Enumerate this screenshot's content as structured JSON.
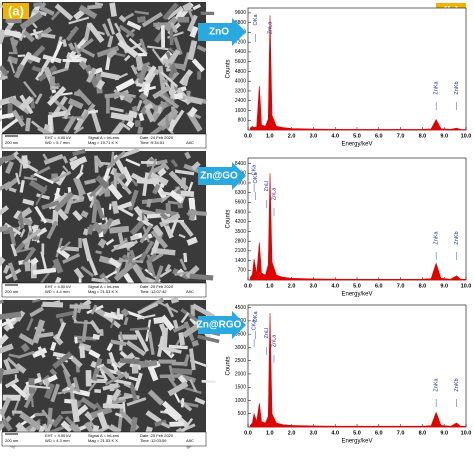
{
  "panel_labels": [
    "(a)",
    "(b)"
  ],
  "sem_images": [
    {
      "scale": "200 nm",
      "eht": "EHT = 4.00 kV",
      "wd": "WD = 5.7 mm",
      "signal": "Signal A = InLens",
      "mag": "Mag = 19.71 K X",
      "date": "Date :24 Feb 2020",
      "time": "Time :9:34:51",
      "logo": "AIIC"
    },
    {
      "scale": "200 nm",
      "eht": "EHT = 4.00 kV",
      "wd": "WD = 4.4 mm",
      "signal": "Signal A = InLens",
      "mag": "Mag = 21.53 K X",
      "date": "Date :25 Feb 2020",
      "time": "Time :12:07:42",
      "logo": "AIIC"
    },
    {
      "scale": "200 nm",
      "eht": "EHT = 4.00 kV",
      "wd": "WD = 4.3 mm",
      "signal": "Signal A = InLens",
      "mag": "Mag = 21.53 K X",
      "date": "Date :25 Feb 2020",
      "time": "Time :12:03:59",
      "logo": "AIIC"
    }
  ],
  "chart_data": [
    {
      "type": "line",
      "sample": "ZnO",
      "xlabel": "Energy/keV",
      "ylabel": "Counts",
      "color": "#e00000",
      "x": [
        0.1,
        0.2,
        0.28,
        0.4,
        0.52,
        0.62,
        0.8,
        0.93,
        1.01,
        1.1,
        1.3,
        1.6,
        2,
        3,
        4,
        5,
        6,
        7,
        8,
        8.4,
        8.63,
        8.85,
        9.3,
        9.57,
        9.75,
        10
      ],
      "values": [
        150,
        300,
        200,
        250,
        3600,
        400,
        300,
        900,
        9400,
        1200,
        300,
        200,
        120,
        80,
        60,
        50,
        50,
        50,
        60,
        90,
        850,
        100,
        60,
        150,
        50,
        40
      ],
      "annotations": [
        "OKa",
        "ZnLa",
        "ZnKa",
        "ZnKb"
      ],
      "xlim": [
        0,
        10
      ],
      "ylim": [
        0,
        10000
      ],
      "xticks": [
        {
          "value": 0,
          "label": "0.0"
        },
        {
          "value": 1,
          "label": "1.0"
        },
        {
          "value": 2,
          "label": "2.0"
        },
        {
          "value": 3,
          "label": "3.0"
        },
        {
          "value": 4,
          "label": "4.0"
        },
        {
          "value": 5,
          "label": "5.0"
        },
        {
          "value": 6,
          "label": "6.0"
        },
        {
          "value": 7,
          "label": "7.0"
        },
        {
          "value": 8,
          "label": "8.0"
        },
        {
          "value": 9,
          "label": "9.0"
        },
        {
          "value": 10,
          "label": "10.0"
        }
      ],
      "yticks": [
        800,
        1600,
        2400,
        3200,
        4000,
        4800,
        5600,
        6400,
        7200,
        8000,
        8800,
        9600
      ]
    },
    {
      "type": "line",
      "sample": "Zn@GO",
      "xlabel": "Energy/keV",
      "ylabel": "Counts",
      "color": "#e00000",
      "x": [
        0.1,
        0.2,
        0.28,
        0.4,
        0.52,
        0.62,
        0.8,
        0.93,
        1.01,
        1.1,
        1.3,
        1.6,
        2,
        3,
        4,
        5,
        6,
        7,
        8,
        8.4,
        8.63,
        8.85,
        9.3,
        9.57,
        9.75,
        10
      ],
      "values": [
        150,
        400,
        1500,
        400,
        2700,
        500,
        350,
        1100,
        7700,
        1300,
        350,
        200,
        120,
        80,
        60,
        50,
        50,
        50,
        60,
        100,
        1200,
        120,
        60,
        300,
        60,
        40
      ],
      "annotations": [
        "CKa",
        "OKa",
        "ZnLl",
        "ZnLa",
        "ZnKa",
        "ZnKb"
      ],
      "xlim": [
        0,
        10
      ],
      "ylim": [
        0,
        8800
      ],
      "xticks": [
        {
          "value": 0,
          "label": "0.0"
        },
        {
          "value": 1,
          "label": "1.0"
        },
        {
          "value": 2,
          "label": "2.0"
        },
        {
          "value": 3,
          "label": "3.0"
        },
        {
          "value": 4,
          "label": "4.0"
        },
        {
          "value": 5,
          "label": "5.0"
        },
        {
          "value": 6,
          "label": "6.0"
        },
        {
          "value": 7,
          "label": "7.0"
        },
        {
          "value": 8,
          "label": "8.0"
        },
        {
          "value": 9,
          "label": "9.0"
        },
        {
          "value": 10,
          "label": "10.0"
        }
      ],
      "yticks": [
        700,
        1400,
        2100,
        2800,
        3500,
        4200,
        4900,
        5600,
        6300,
        7000,
        7700,
        8400
      ]
    },
    {
      "type": "line",
      "sample": "Zn@RGO",
      "xlabel": "Energy/keV",
      "ylabel": "Counts",
      "color": "#e00000",
      "x": [
        0.1,
        0.2,
        0.28,
        0.4,
        0.52,
        0.62,
        0.8,
        0.93,
        1.01,
        1.1,
        1.3,
        1.6,
        2,
        3,
        4,
        5,
        6,
        7,
        8,
        8.4,
        8.63,
        8.85,
        9.3,
        9.57,
        9.75,
        10
      ],
      "values": [
        60,
        150,
        500,
        200,
        900,
        200,
        150,
        400,
        4300,
        500,
        150,
        90,
        60,
        40,
        30,
        30,
        30,
        30,
        30,
        50,
        550,
        60,
        30,
        150,
        30,
        20
      ],
      "annotations": [
        "OKa",
        "CKa",
        "ZnLl",
        "ZnLa",
        "ZnKa",
        "ZnKb"
      ],
      "xlim": [
        0,
        10
      ],
      "ylim": [
        0,
        4600
      ],
      "xticks": [
        {
          "value": 0,
          "label": "0.0"
        },
        {
          "value": 1,
          "label": "1.0"
        },
        {
          "value": 2,
          "label": "2.0"
        },
        {
          "value": 3,
          "label": "3.0"
        },
        {
          "value": 4,
          "label": "4.0"
        },
        {
          "value": 5,
          "label": "5.0"
        },
        {
          "value": 6,
          "label": "6.0"
        },
        {
          "value": 7,
          "label": "7.0"
        },
        {
          "value": 8,
          "label": "8.0"
        },
        {
          "value": 9,
          "label": "9.0"
        },
        {
          "value": 10,
          "label": "10.0"
        }
      ],
      "yticks": [
        500,
        1000,
        1500,
        2000,
        2500,
        3000,
        3500,
        4000,
        4500
      ]
    }
  ]
}
